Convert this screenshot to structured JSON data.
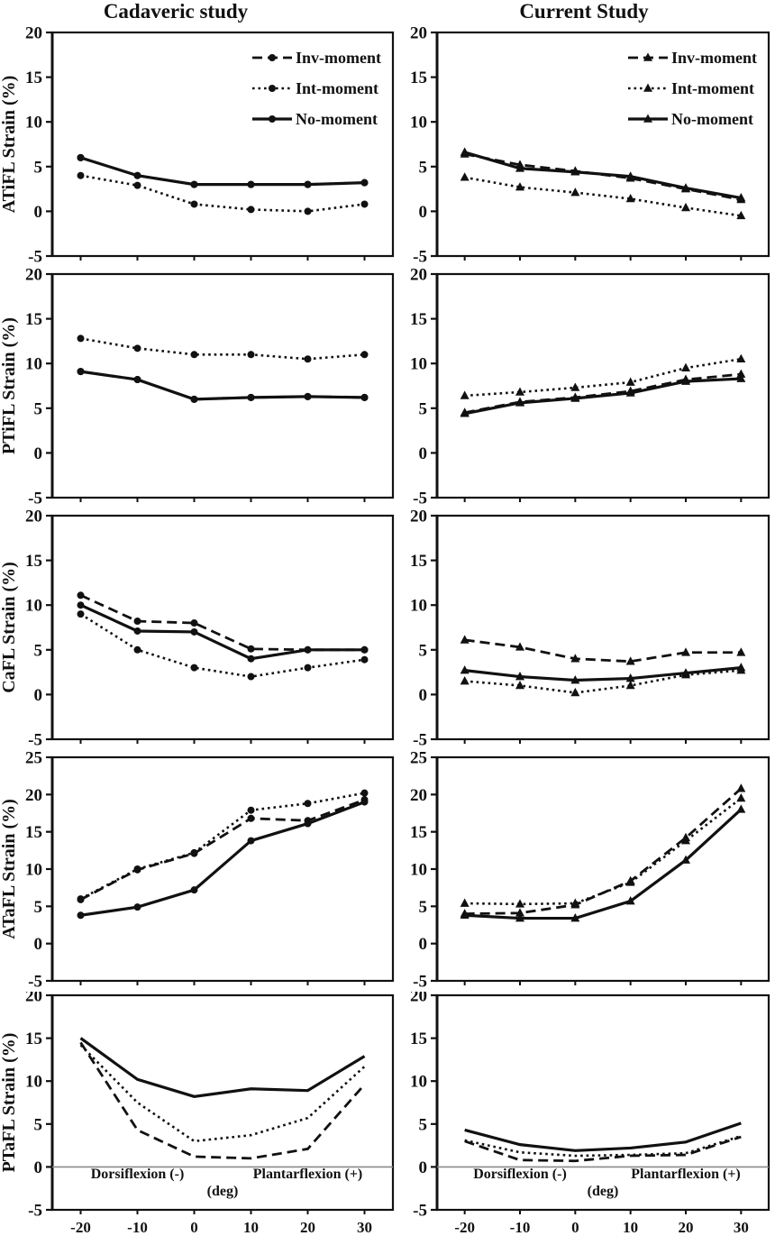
{
  "figure": {
    "column_titles": {
      "left": "Cadaveric study",
      "right": "Current Study"
    },
    "legend": [
      "Inv-moment",
      "Int-moment",
      "No-moment"
    ],
    "colors": {
      "line": "#111111",
      "zero_line": "#8a8a8a",
      "background": "#ffffff"
    },
    "x_axis": {
      "ticks": [
        -20,
        -10,
        0,
        10,
        20,
        30
      ],
      "unit_label": "(deg)",
      "negative_label": "Dorsiflexion (-)",
      "positive_label": "Plantarflexion (+)"
    }
  },
  "chart_data": [
    {
      "type": "line",
      "row": "ATiFL",
      "column": "Cadaveric study",
      "side": "left",
      "ylabel": "ATiFL Strain (%)",
      "x": [
        -20,
        -10,
        0,
        10,
        20,
        30
      ],
      "ylim": [
        -5,
        20
      ],
      "yticks": [
        -5,
        0,
        5,
        10,
        15,
        20
      ],
      "marker": "circle",
      "markers_visible": true,
      "legend_visible": true,
      "xtick_labels_visible": false,
      "zero_line": false,
      "series": [
        {
          "name": "Inv-moment",
          "style": "dashed",
          "values": [
            6.0,
            4.0,
            3.0,
            3.0,
            3.0,
            3.2
          ]
        },
        {
          "name": "Int-moment",
          "style": "dotted",
          "values": [
            4.0,
            2.9,
            0.8,
            0.2,
            0.0,
            0.8
          ]
        },
        {
          "name": "No-moment",
          "style": "solid",
          "values": [
            6.0,
            4.0,
            3.0,
            3.0,
            3.0,
            3.2
          ]
        }
      ]
    },
    {
      "type": "line",
      "row": "ATiFL",
      "column": "Current Study",
      "side": "right",
      "x": [
        -20,
        -10,
        0,
        10,
        20,
        30
      ],
      "ylim": [
        -5,
        20
      ],
      "yticks": [
        -5,
        0,
        5,
        10,
        15,
        20
      ],
      "marker": "triangle",
      "markers_visible": true,
      "legend_visible": true,
      "xtick_labels_visible": false,
      "zero_line": false,
      "series": [
        {
          "name": "Inv-moment",
          "style": "dashed",
          "values": [
            6.4,
            5.2,
            4.5,
            3.7,
            2.5,
            1.3
          ]
        },
        {
          "name": "Int-moment",
          "style": "dotted",
          "values": [
            3.8,
            2.7,
            2.1,
            1.4,
            0.4,
            -0.5
          ]
        },
        {
          "name": "No-moment",
          "style": "solid",
          "values": [
            6.6,
            4.8,
            4.4,
            3.9,
            2.6,
            1.5
          ]
        }
      ]
    },
    {
      "type": "line",
      "row": "PTiFL",
      "column": "Cadaveric study",
      "side": "left",
      "ylabel": "PTiFL Strain (%)",
      "x": [
        -20,
        -10,
        0,
        10,
        20,
        30
      ],
      "ylim": [
        -5,
        20
      ],
      "yticks": [
        -5,
        0,
        5,
        10,
        15,
        20
      ],
      "marker": "circle",
      "markers_visible": true,
      "legend_visible": false,
      "xtick_labels_visible": false,
      "zero_line": false,
      "series": [
        {
          "name": "Inv-moment",
          "style": "dashed",
          "values": [
            9.1,
            8.2,
            6.0,
            6.2,
            6.3,
            6.2
          ]
        },
        {
          "name": "Int-moment",
          "style": "dotted",
          "values": [
            12.8,
            11.7,
            11.0,
            11.0,
            10.5,
            11.0
          ]
        },
        {
          "name": "No-moment",
          "style": "solid",
          "values": [
            9.1,
            8.2,
            6.0,
            6.2,
            6.3,
            6.2
          ]
        }
      ]
    },
    {
      "type": "line",
      "row": "PTiFL",
      "column": "Current Study",
      "side": "right",
      "x": [
        -20,
        -10,
        0,
        10,
        20,
        30
      ],
      "ylim": [
        -5,
        20
      ],
      "yticks": [
        -5,
        0,
        5,
        10,
        15,
        20
      ],
      "marker": "triangle",
      "markers_visible": true,
      "legend_visible": false,
      "xtick_labels_visible": false,
      "zero_line": false,
      "series": [
        {
          "name": "Inv-moment",
          "style": "dashed",
          "values": [
            4.5,
            5.7,
            6.2,
            6.9,
            8.2,
            8.8
          ]
        },
        {
          "name": "Int-moment",
          "style": "dotted",
          "values": [
            6.4,
            6.8,
            7.3,
            7.9,
            9.5,
            10.5
          ]
        },
        {
          "name": "No-moment",
          "style": "solid",
          "values": [
            4.4,
            5.6,
            6.1,
            6.7,
            8.0,
            8.3
          ]
        }
      ]
    },
    {
      "type": "line",
      "row": "CaFL",
      "column": "Cadaveric study",
      "side": "left",
      "ylabel": "CaFL Strain (%)",
      "x": [
        -20,
        -10,
        0,
        10,
        20,
        30
      ],
      "ylim": [
        -5,
        20
      ],
      "yticks": [
        -5,
        0,
        5,
        10,
        15,
        20
      ],
      "marker": "circle",
      "markers_visible": true,
      "legend_visible": false,
      "xtick_labels_visible": false,
      "zero_line": false,
      "series": [
        {
          "name": "Inv-moment",
          "style": "dashed",
          "values": [
            11.1,
            8.2,
            8.0,
            5.1,
            5.0,
            5.0
          ]
        },
        {
          "name": "Int-moment",
          "style": "dotted",
          "values": [
            9.0,
            5.0,
            3.0,
            2.0,
            3.0,
            3.9
          ]
        },
        {
          "name": "No-moment",
          "style": "solid",
          "values": [
            10.0,
            7.1,
            7.0,
            4.0,
            5.0,
            5.0
          ]
        }
      ]
    },
    {
      "type": "line",
      "row": "CaFL",
      "column": "Current Study",
      "side": "right",
      "x": [
        -20,
        -10,
        0,
        10,
        20,
        30
      ],
      "ylim": [
        -5,
        20
      ],
      "yticks": [
        -5,
        0,
        5,
        10,
        15,
        20
      ],
      "marker": "triangle",
      "markers_visible": true,
      "legend_visible": false,
      "xtick_labels_visible": false,
      "zero_line": false,
      "series": [
        {
          "name": "Inv-moment",
          "style": "dashed",
          "values": [
            6.1,
            5.3,
            4.0,
            3.7,
            4.7,
            4.7
          ]
        },
        {
          "name": "Int-moment",
          "style": "dotted",
          "values": [
            1.5,
            1.0,
            0.2,
            1.0,
            2.2,
            2.7
          ]
        },
        {
          "name": "No-moment",
          "style": "solid",
          "values": [
            2.7,
            2.0,
            1.6,
            1.8,
            2.4,
            3.0
          ]
        }
      ]
    },
    {
      "type": "line",
      "row": "ATaFL",
      "column": "Cadaveric study",
      "side": "left",
      "ylabel": "ATaFL Strain (%)",
      "x": [
        -20,
        -10,
        0,
        10,
        20,
        30
      ],
      "ylim": [
        -5,
        25
      ],
      "yticks": [
        -5,
        0,
        5,
        10,
        15,
        20,
        25
      ],
      "marker": "circle",
      "markers_visible": true,
      "legend_visible": false,
      "xtick_labels_visible": false,
      "zero_line": false,
      "series": [
        {
          "name": "Inv-moment",
          "style": "dashed",
          "values": [
            5.9,
            9.9,
            12.1,
            16.8,
            16.5,
            19.3
          ]
        },
        {
          "name": "Int-moment",
          "style": "dotted",
          "values": [
            6.0,
            10.0,
            12.2,
            17.9,
            18.8,
            20.2
          ]
        },
        {
          "name": "No-moment",
          "style": "solid",
          "values": [
            3.8,
            4.9,
            7.2,
            13.8,
            16.1,
            19.0
          ]
        }
      ]
    },
    {
      "type": "line",
      "row": "ATaFL",
      "column": "Current Study",
      "side": "right",
      "x": [
        -20,
        -10,
        0,
        10,
        20,
        30
      ],
      "ylim": [
        -5,
        25
      ],
      "yticks": [
        -5,
        0,
        5,
        10,
        15,
        20,
        25
      ],
      "marker": "triangle",
      "markers_visible": true,
      "legend_visible": false,
      "xtick_labels_visible": false,
      "zero_line": false,
      "series": [
        {
          "name": "Inv-moment",
          "style": "dashed",
          "values": [
            4.0,
            4.1,
            5.2,
            8.4,
            14.2,
            20.8
          ]
        },
        {
          "name": "Int-moment",
          "style": "dotted",
          "values": [
            5.4,
            5.3,
            5.4,
            8.2,
            13.8,
            19.5
          ]
        },
        {
          "name": "No-moment",
          "style": "solid",
          "values": [
            3.8,
            3.4,
            3.4,
            5.7,
            11.2,
            18.0
          ]
        }
      ]
    },
    {
      "type": "line",
      "row": "PTaFL",
      "column": "Cadaveric study",
      "side": "left",
      "ylabel": "PTaFL Strain (%)",
      "x": [
        -20,
        -10,
        0,
        10,
        20,
        30
      ],
      "ylim": [
        -5,
        20
      ],
      "yticks": [
        -5,
        0,
        5,
        10,
        15,
        20
      ],
      "marker": "none",
      "markers_visible": false,
      "legend_visible": false,
      "xtick_labels_visible": true,
      "zero_line": true,
      "x_annotations": {
        "negative": "Dorsiflexion (-)",
        "unit": "(deg)",
        "positive": "Plantarflexion (+)"
      },
      "series": [
        {
          "name": "Inv-moment",
          "style": "dashed",
          "values": [
            14.5,
            4.3,
            1.2,
            1.0,
            2.1,
            9.6
          ]
        },
        {
          "name": "Int-moment",
          "style": "dotted",
          "values": [
            14.2,
            7.5,
            3.0,
            3.7,
            5.7,
            11.7
          ]
        },
        {
          "name": "No-moment",
          "style": "solid",
          "values": [
            15.0,
            10.2,
            8.2,
            9.1,
            8.9,
            12.9
          ]
        }
      ]
    },
    {
      "type": "line",
      "row": "PTaFL",
      "column": "Current Study",
      "side": "right",
      "x": [
        -20,
        -10,
        0,
        10,
        20,
        30
      ],
      "ylim": [
        -5,
        20
      ],
      "yticks": [
        -5,
        0,
        5,
        10,
        15,
        20
      ],
      "marker": "none",
      "markers_visible": false,
      "legend_visible": false,
      "xtick_labels_visible": true,
      "zero_line": true,
      "x_annotations": {
        "negative": "Dorsiflexion (-)",
        "unit": "(deg)",
        "positive": "Plantarflexion (+)"
      },
      "series": [
        {
          "name": "Inv-moment",
          "style": "dashed",
          "values": [
            3.0,
            0.8,
            0.7,
            1.3,
            1.4,
            3.5
          ]
        },
        {
          "name": "Int-moment",
          "style": "dotted",
          "values": [
            3.1,
            1.7,
            1.3,
            1.4,
            1.6,
            3.6
          ]
        },
        {
          "name": "No-moment",
          "style": "solid",
          "values": [
            4.3,
            2.6,
            1.9,
            2.2,
            2.9,
            5.1
          ]
        }
      ]
    }
  ]
}
